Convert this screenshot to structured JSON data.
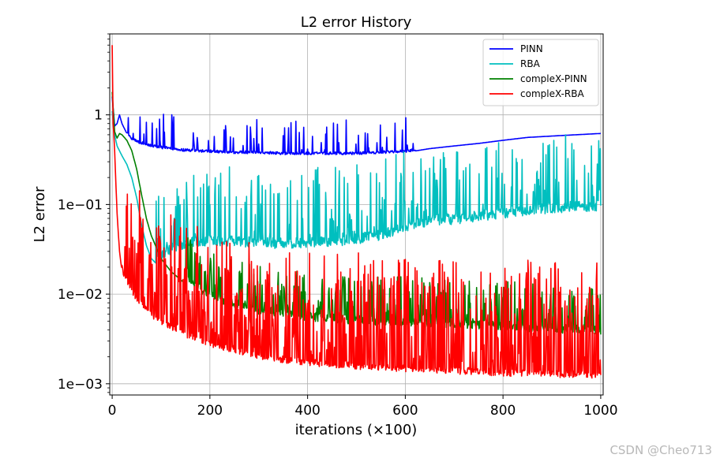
{
  "chart_data": {
    "type": "line",
    "title": "L2 error History",
    "xlabel": "iterations (×100)",
    "ylabel": "L2 error",
    "xlim": [
      -5,
      1005
    ],
    "ylim": [
      0.00075,
      8
    ],
    "yscale": "log",
    "xticks": [
      0,
      200,
      400,
      600,
      800,
      1000
    ],
    "xtick_labels": [
      "0",
      "200",
      "400",
      "600",
      "800",
      "1000"
    ],
    "yticks": [
      0.001,
      0.01,
      0.1,
      1
    ],
    "ytick_labels": [
      "1e−03",
      "1e−02",
      "1e−01",
      "1"
    ],
    "grid": true,
    "legend_position": "top-right",
    "series": [
      {
        "name": "PINN",
        "color": "#0000ff",
        "x": [
          0,
          5,
          10,
          15,
          20,
          30,
          40,
          60,
          80,
          100,
          150,
          200,
          250,
          300,
          350,
          400,
          450,
          500,
          550,
          600,
          650,
          700,
          750,
          800,
          850,
          900,
          950,
          1000
        ],
        "y": [
          1.6,
          0.75,
          0.8,
          1.0,
          0.8,
          0.62,
          0.52,
          0.47,
          0.44,
          0.42,
          0.39,
          0.38,
          0.37,
          0.37,
          0.36,
          0.36,
          0.36,
          0.36,
          0.37,
          0.38,
          0.42,
          0.45,
          0.48,
          0.52,
          0.56,
          0.58,
          0.6,
          0.62
        ],
        "spike_amplitude": 0.4,
        "spike_x_range": [
          30,
          620
        ]
      },
      {
        "name": "RBA",
        "color": "#00bfbf",
        "x": [
          0,
          5,
          10,
          20,
          30,
          40,
          50,
          60,
          70,
          80,
          90,
          100,
          120,
          150,
          200,
          250,
          300,
          350,
          400,
          450,
          500,
          550,
          600,
          650,
          700,
          750,
          800,
          850,
          900,
          950,
          1000
        ],
        "y": [
          1.1,
          0.6,
          0.45,
          0.35,
          0.28,
          0.2,
          0.12,
          0.06,
          0.035,
          0.025,
          0.022,
          0.024,
          0.028,
          0.032,
          0.035,
          0.034,
          0.033,
          0.032,
          0.033,
          0.034,
          0.036,
          0.04,
          0.05,
          0.058,
          0.06,
          0.065,
          0.07,
          0.075,
          0.08,
          0.082,
          0.085
        ],
        "spike_amplitude": 0.9,
        "spike_x_range": [
          90,
          1000
        ]
      },
      {
        "name": "compleX-PINN",
        "color": "#008000",
        "x": [
          0,
          5,
          10,
          15,
          20,
          30,
          40,
          50,
          60,
          70,
          80,
          100,
          120,
          150,
          200,
          250,
          300,
          350,
          400,
          450,
          500,
          550,
          600,
          650,
          700,
          750,
          800,
          850,
          900,
          950,
          1000
        ],
        "y": [
          1.8,
          0.65,
          0.55,
          0.62,
          0.6,
          0.52,
          0.4,
          0.25,
          0.13,
          0.07,
          0.045,
          0.025,
          0.018,
          0.013,
          0.0085,
          0.007,
          0.006,
          0.0055,
          0.005,
          0.0048,
          0.0046,
          0.0045,
          0.0044,
          0.0043,
          0.0042,
          0.0041,
          0.004,
          0.0038,
          0.0037,
          0.0036,
          0.0035
        ],
        "spike_amplitude": 0.55,
        "spike_x_range": [
          150,
          1000
        ]
      },
      {
        "name": "compleX-RBA",
        "color": "#ff0000",
        "x": [
          0,
          2,
          5,
          10,
          15,
          20,
          30,
          40,
          50,
          70,
          100,
          150,
          200,
          250,
          300,
          350,
          400,
          450,
          500,
          550,
          600,
          650,
          700,
          750,
          800,
          850,
          900,
          950,
          1000
        ],
        "y": [
          6.0,
          0.8,
          0.4,
          0.08,
          0.03,
          0.018,
          0.013,
          0.01,
          0.008,
          0.006,
          0.0045,
          0.0033,
          0.0026,
          0.0022,
          0.0019,
          0.0017,
          0.0016,
          0.0015,
          0.00145,
          0.0014,
          0.00135,
          0.0013,
          0.00128,
          0.00125,
          0.00122,
          0.0012,
          0.00118,
          0.00116,
          0.00115
        ],
        "spike_amplitude": 1.3,
        "spike_x_range": [
          20,
          1000
        ]
      }
    ]
  },
  "watermark": "CSDN @Cheo713"
}
